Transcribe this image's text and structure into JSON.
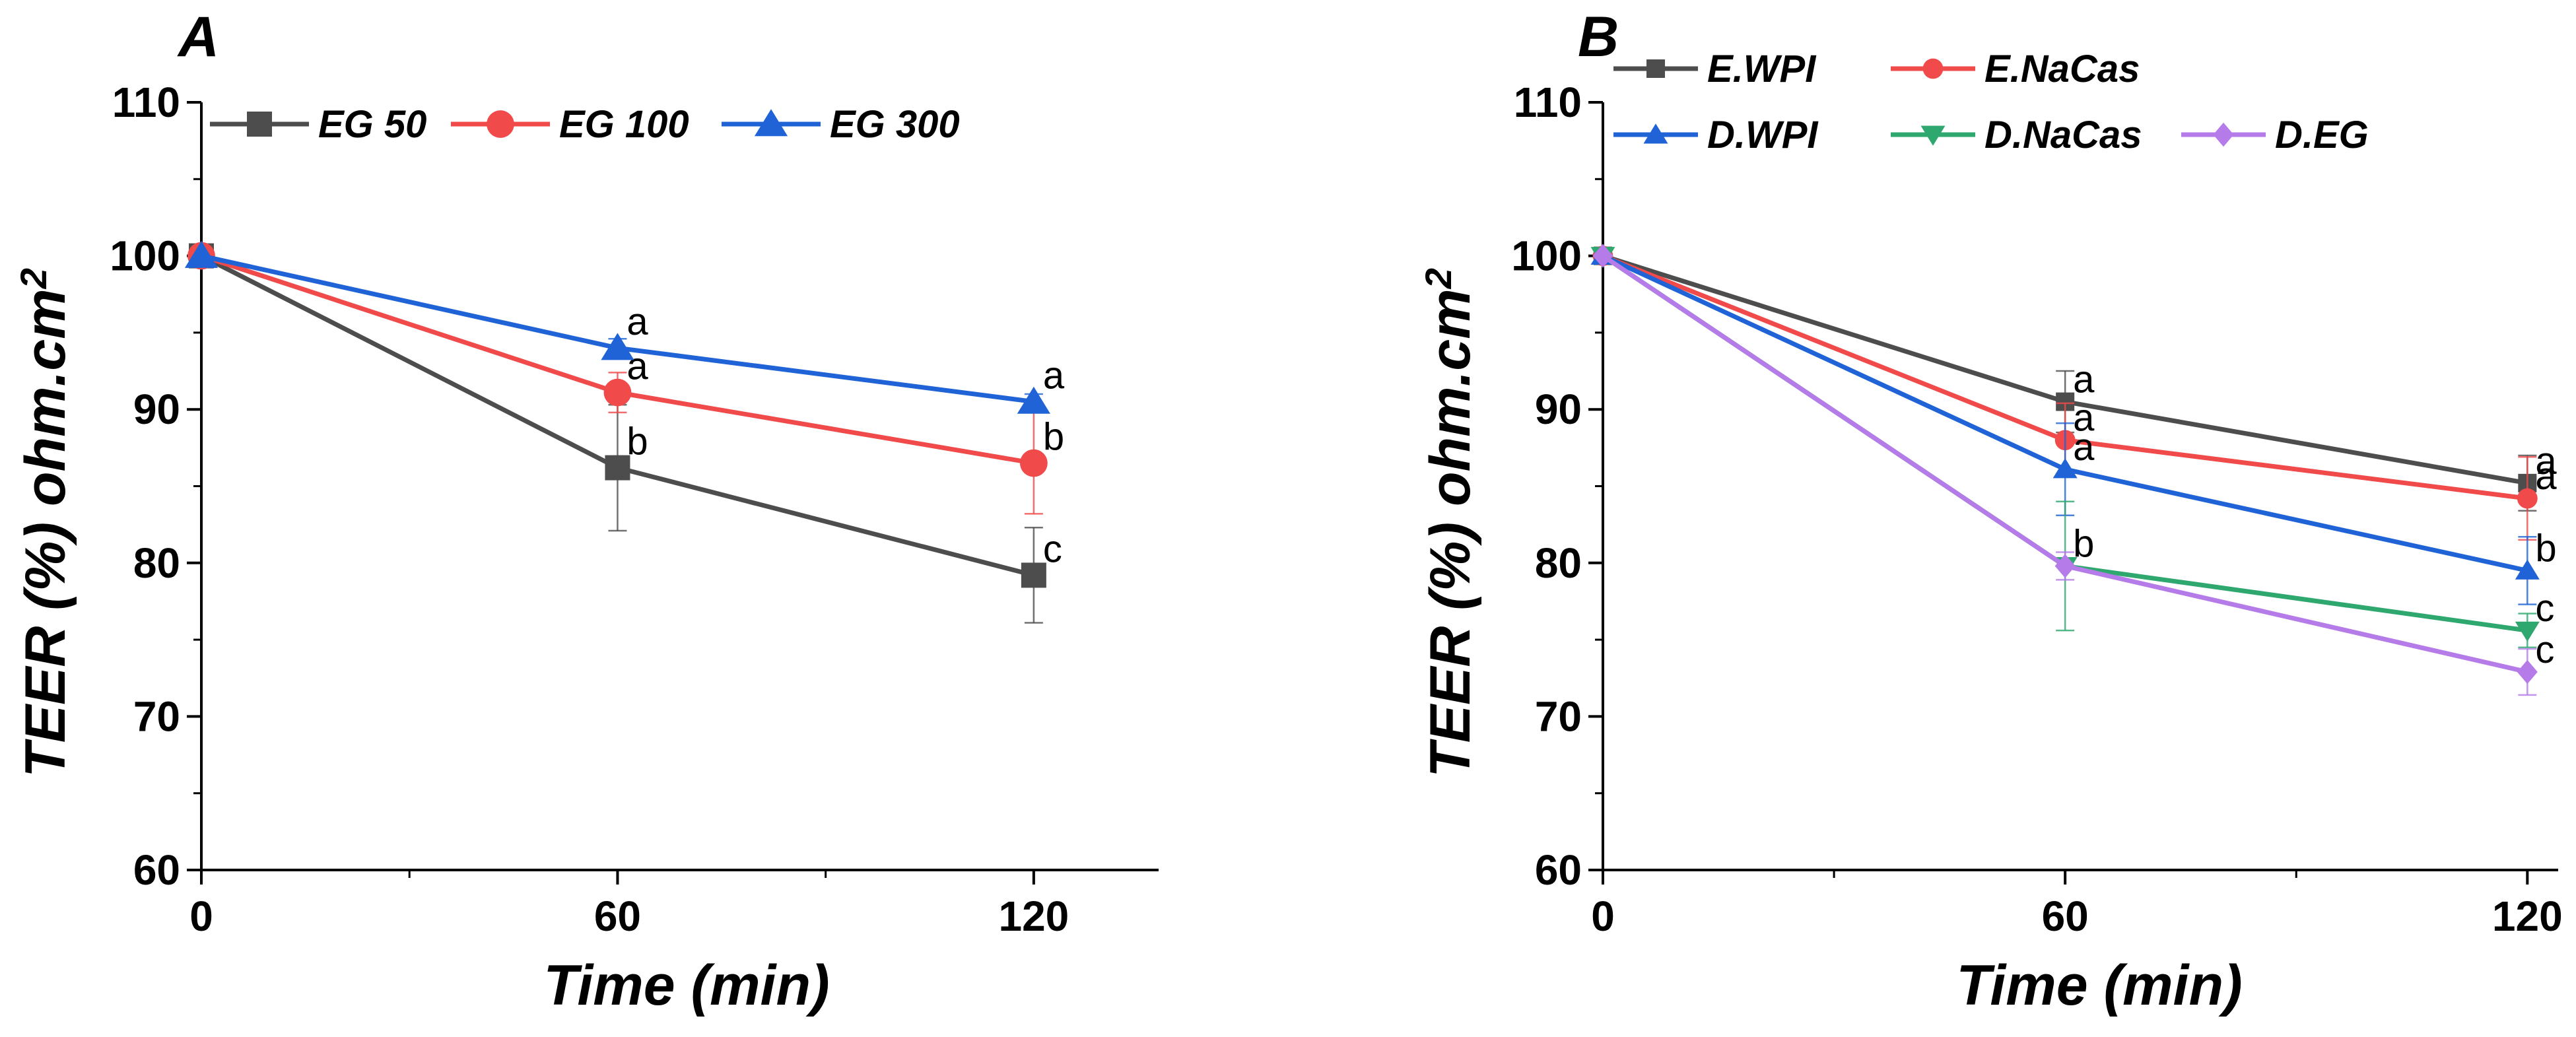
{
  "chart_data": [
    {
      "type": "line",
      "panel_label": "A",
      "xlabel": "Time (min)",
      "ylabel_main": "TEER (%) ohm.cm",
      "ylabel_superscript": "2",
      "xlim": [
        0,
        138
      ],
      "ylim": [
        60,
        110
      ],
      "x_ticks": [
        0,
        60,
        120
      ],
      "y_ticks": [
        60,
        70,
        80,
        90,
        100,
        110
      ],
      "x": [
        0,
        60,
        120
      ],
      "legend_position": "top",
      "series": [
        {
          "name": "EG 50",
          "color": "#4d4d4d",
          "marker": "square",
          "values": [
            100,
            86.2,
            79.2
          ],
          "errors": [
            0,
            4.1,
            3.1
          ],
          "labels": [
            "",
            "b",
            "c"
          ]
        },
        {
          "name": "EG 100",
          "color": "#f04a4a",
          "marker": "circle",
          "values": [
            100,
            91.1,
            86.5
          ],
          "errors": [
            0,
            1.3,
            3.3
          ],
          "labels": [
            "",
            "a",
            "b"
          ]
        },
        {
          "name": "EG 300",
          "color": "#1f63d6",
          "marker": "triangle-up",
          "values": [
            100,
            94.0,
            90.5
          ],
          "errors": [
            0,
            0.6,
            0.5
          ],
          "labels": [
            "",
            "a",
            "a"
          ]
        }
      ]
    },
    {
      "type": "line",
      "panel_label": "B",
      "xlabel": "Time (min)",
      "ylabel_main": "TEER  (%) ohm.cm",
      "ylabel_superscript": "2",
      "xlim": [
        0,
        124
      ],
      "ylim": [
        60,
        110
      ],
      "x_ticks": [
        0,
        60,
        120
      ],
      "y_ticks": [
        60,
        70,
        80,
        90,
        100,
        110
      ],
      "x": [
        0,
        60,
        120
      ],
      "legend_position": "top",
      "series": [
        {
          "name": "E.WPI",
          "color": "#4d4d4d",
          "marker": "square",
          "values": [
            100,
            90.5,
            85.2
          ],
          "errors": [
            0,
            2.0,
            1.8
          ],
          "labels": [
            "",
            "a",
            "a"
          ]
        },
        {
          "name": "E.NaCas",
          "color": "#f04a4a",
          "marker": "circle",
          "values": [
            100,
            88.0,
            84.2
          ],
          "errors": [
            0,
            2.4,
            2.7
          ],
          "labels": [
            "",
            "a",
            "a"
          ]
        },
        {
          "name": "D.WPI",
          "color": "#1f63d6",
          "marker": "triangle-up",
          "values": [
            100,
            86.1,
            79.5
          ],
          "errors": [
            0,
            3.0,
            2.2
          ],
          "labels": [
            "",
            "a",
            "b"
          ]
        },
        {
          "name": "D.NaCas",
          "color": "#2ea86e",
          "marker": "triangle-down",
          "values": [
            100,
            79.8,
            75.6
          ],
          "errors": [
            0,
            4.2,
            1.1
          ],
          "labels": [
            "",
            "b",
            "c"
          ]
        },
        {
          "name": "D.EG",
          "color": "#b57be8",
          "marker": "diamond",
          "values": [
            100,
            79.8,
            72.9
          ],
          "errors": [
            0,
            0.9,
            1.5
          ],
          "labels": [
            "",
            "",
            "c"
          ]
        }
      ]
    }
  ]
}
